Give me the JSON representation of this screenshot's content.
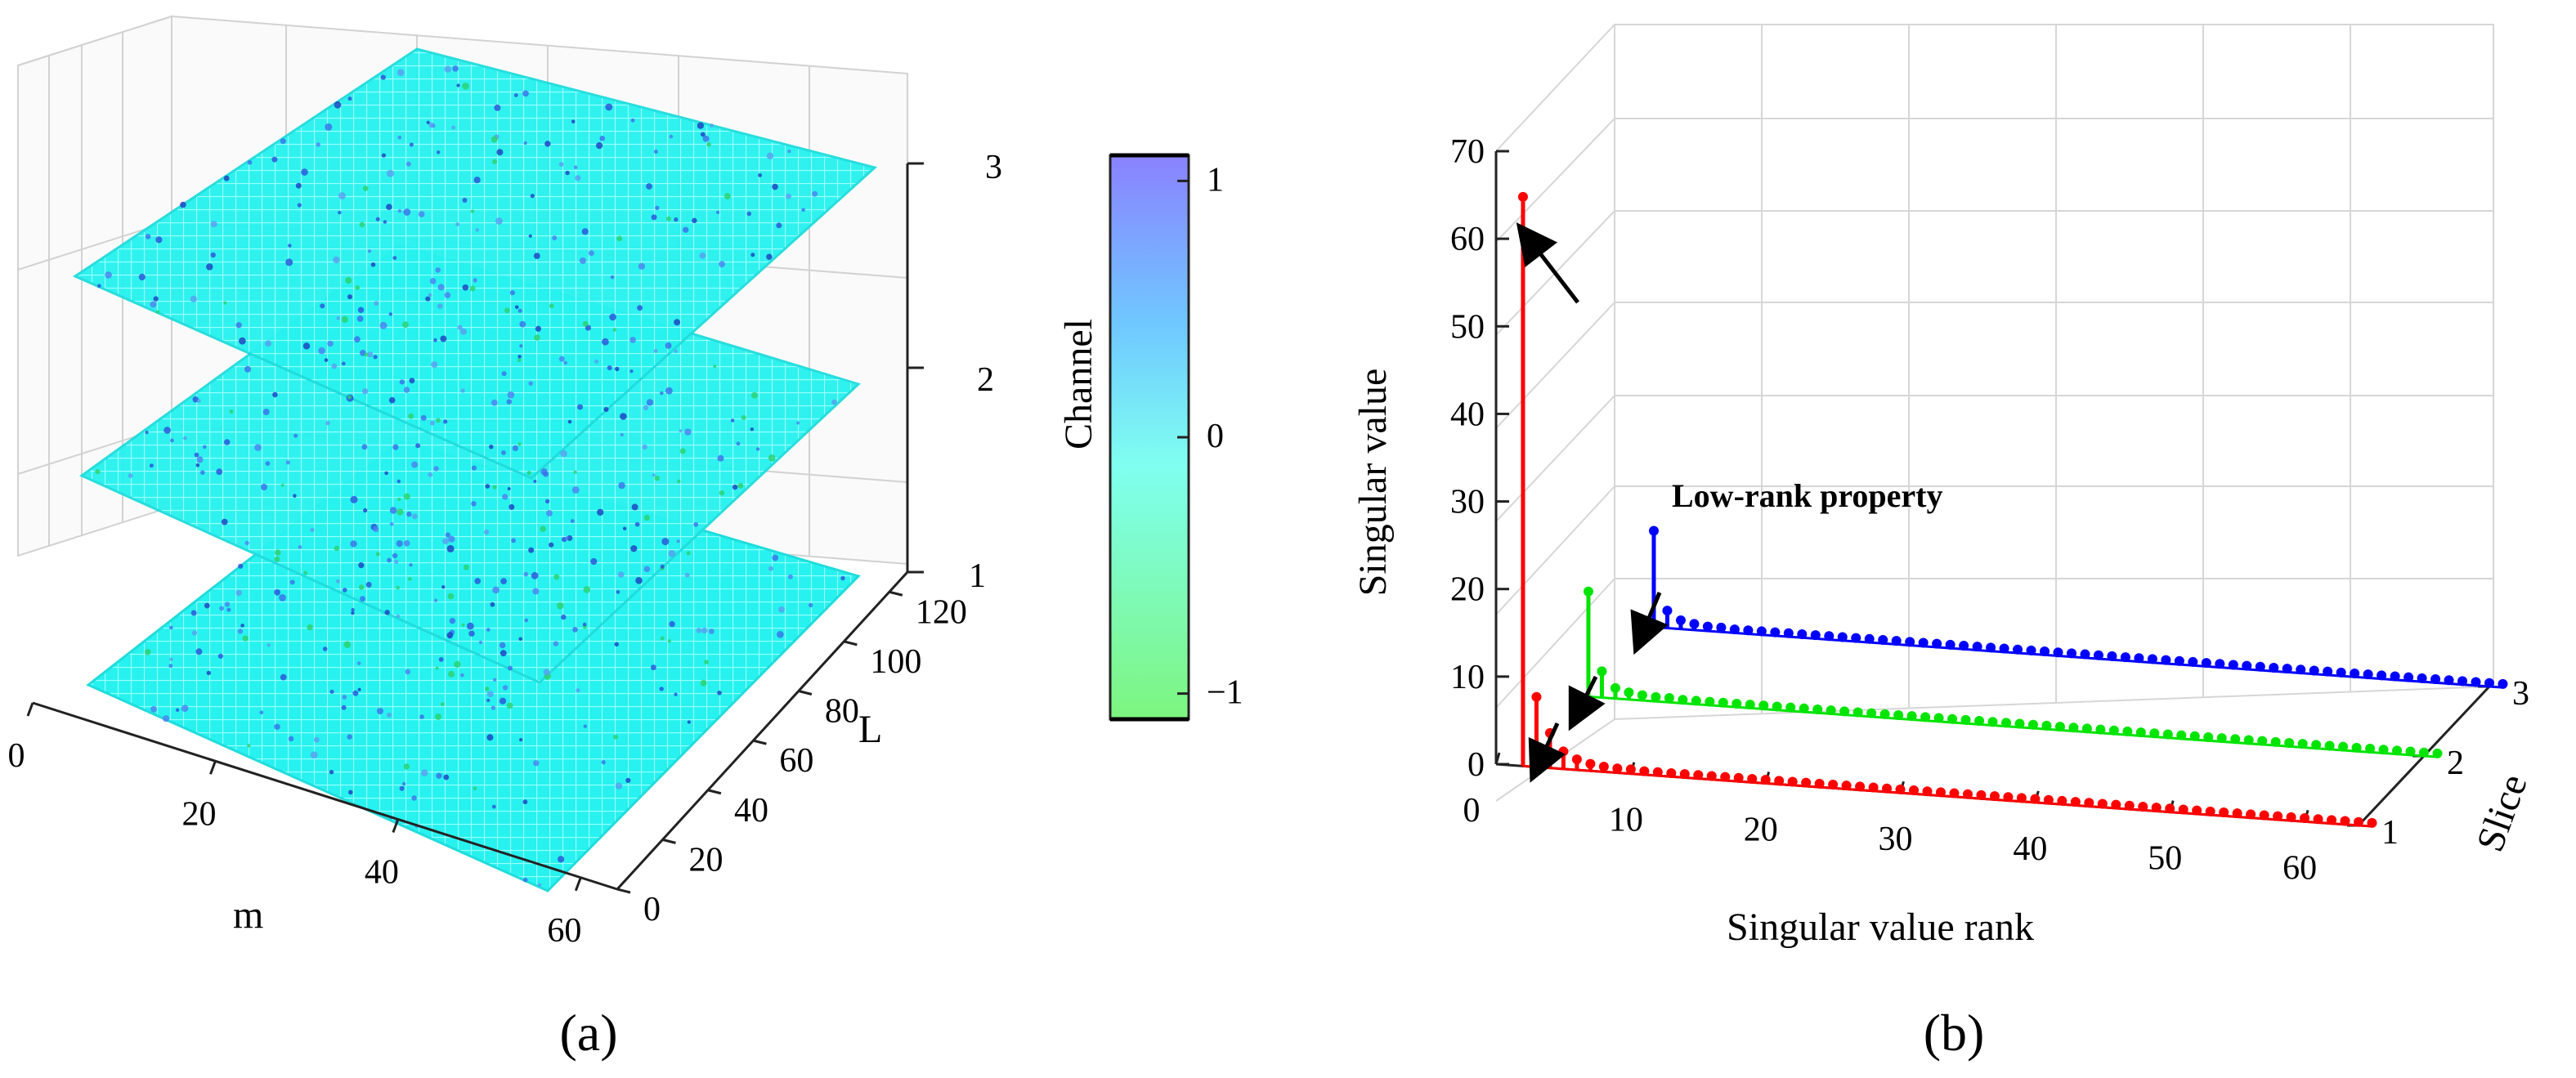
{
  "chart_data": [
    {
      "panel": "a",
      "type": "heatmap",
      "title": "",
      "xlabel": "m",
      "ylabel": "L",
      "zlabel": "Channel",
      "x_ticks": [
        "0",
        "20",
        "40",
        "60"
      ],
      "y_ticks": [
        "0",
        "20",
        "40",
        "60",
        "80",
        "100",
        "120"
      ],
      "z_ticks": [
        "1",
        "2",
        "3"
      ],
      "x_range": [
        0,
        64
      ],
      "y_range": [
        0,
        128
      ],
      "z_range": [
        1,
        3
      ],
      "slices": [
        1,
        2,
        3
      ],
      "colorbar": {
        "label": "Channel",
        "range": [
          -1.1,
          1.1
        ],
        "ticks": [
          "1",
          "0",
          "−1"
        ],
        "tick_values": [
          1,
          0,
          -1
        ],
        "colors": [
          "#8a82ff",
          "#6fc8ff",
          "#7ffff0",
          "#7df57f"
        ]
      }
    },
    {
      "panel": "b",
      "type": "stem3d",
      "title": "",
      "xlabel": "Singular value rank",
      "ylabel": "Singular value",
      "zlabel": "Slice",
      "x_ticks": [
        "0",
        "10",
        "20",
        "30",
        "40",
        "50",
        "60"
      ],
      "y_ticks": [
        "0",
        "10",
        "20",
        "30",
        "40",
        "50",
        "60",
        "70"
      ],
      "slice_ticks": [
        "1",
        "2",
        "3"
      ],
      "xlim": [
        0,
        64
      ],
      "ylim": [
        0,
        70
      ],
      "annotation": "Low-rank property",
      "series": [
        {
          "name": "Slice 1",
          "slice": 1,
          "color": "#ff0000",
          "values": [
            65,
            8,
            4,
            2,
            1.2,
            0.8,
            0.6,
            0.5,
            0.5
          ]
        },
        {
          "name": "Slice 2",
          "slice": 2,
          "color": "#00e400",
          "values": [
            12,
            3,
            1.2,
            0.8,
            0.6,
            0.5,
            0.5
          ]
        },
        {
          "name": "Slice 3",
          "slice": 3,
          "color": "#0000ff",
          "values": [
            11,
            2,
            1,
            0.7,
            0.5,
            0.5
          ]
        }
      ],
      "tail_value": 0.4,
      "num_points": 64
    }
  ],
  "captions": {
    "a": "(a)",
    "b": "(b)"
  }
}
